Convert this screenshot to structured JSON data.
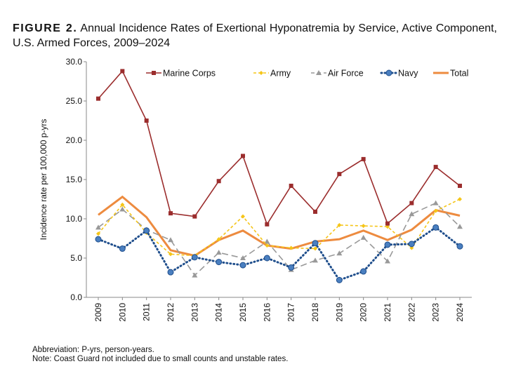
{
  "figure_label": "FIGURE 2.",
  "title": "Annual Incidence Rates of Exertional Hyponatremia by Service, Active Component, U.S. Armed Forces, 2009–2024",
  "notes": [
    "Abbreviation: P-yrs, person-years.",
    "Note: Coast Guard not included due to small counts and unstable rates."
  ],
  "chart_data": {
    "type": "line",
    "title": "Annual Incidence Rates of Exertional Hyponatremia by Service, Active Component, U.S. Armed Forces, 2009–2024",
    "xlabel": "",
    "ylabel": "Incidence rate per 100,000 p-yrs",
    "ylim": [
      0,
      30
    ],
    "yticks": [
      "0.0",
      "5.0",
      "10.0",
      "15.0",
      "20.0",
      "25.0",
      "30.0"
    ],
    "grid": false,
    "legend": "top",
    "x": [
      "2009",
      "2010",
      "2011",
      "2012",
      "2013",
      "2014",
      "2015",
      "2016",
      "2017",
      "2018",
      "2019",
      "2020",
      "2021",
      "2022",
      "2023",
      "2024"
    ],
    "series": [
      {
        "name": "Marine Corps",
        "color": "#9b2d2d",
        "style": "solid",
        "marker": "square",
        "values": [
          25.3,
          28.8,
          22.5,
          10.7,
          10.3,
          14.8,
          18.0,
          9.3,
          14.2,
          10.9,
          15.7,
          17.6,
          9.4,
          12.0,
          16.6,
          14.2
        ]
      },
      {
        "name": "Army",
        "color": "#f5c518",
        "style": "dash",
        "marker": "diamond",
        "values": [
          8.1,
          11.8,
          8.2,
          5.5,
          5.3,
          7.4,
          10.3,
          6.6,
          6.3,
          6.2,
          9.2,
          9.1,
          9.0,
          6.3,
          11.0,
          12.5
        ]
      },
      {
        "name": "Air Force",
        "color": "#999999",
        "style": "longdash",
        "marker": "triangle",
        "values": [
          8.9,
          11.2,
          8.6,
          7.3,
          2.8,
          5.7,
          5.0,
          7.1,
          3.5,
          4.7,
          5.6,
          7.6,
          4.6,
          10.6,
          12.0,
          9.0
        ]
      },
      {
        "name": "Navy",
        "color": "#1f4e8c",
        "style": "dot",
        "marker": "circle",
        "values": [
          7.4,
          6.2,
          8.5,
          3.2,
          5.1,
          4.5,
          4.1,
          5.0,
          3.8,
          6.9,
          2.2,
          3.3,
          6.7,
          6.8,
          8.9,
          6.5
        ]
      },
      {
        "name": "Total",
        "color": "#ed8b3f",
        "style": "thick",
        "marker": "none",
        "values": [
          10.5,
          12.8,
          10.2,
          6.0,
          5.3,
          7.3,
          8.5,
          6.6,
          6.2,
          7.1,
          7.4,
          8.5,
          7.3,
          8.6,
          11.1,
          10.4
        ]
      }
    ]
  }
}
